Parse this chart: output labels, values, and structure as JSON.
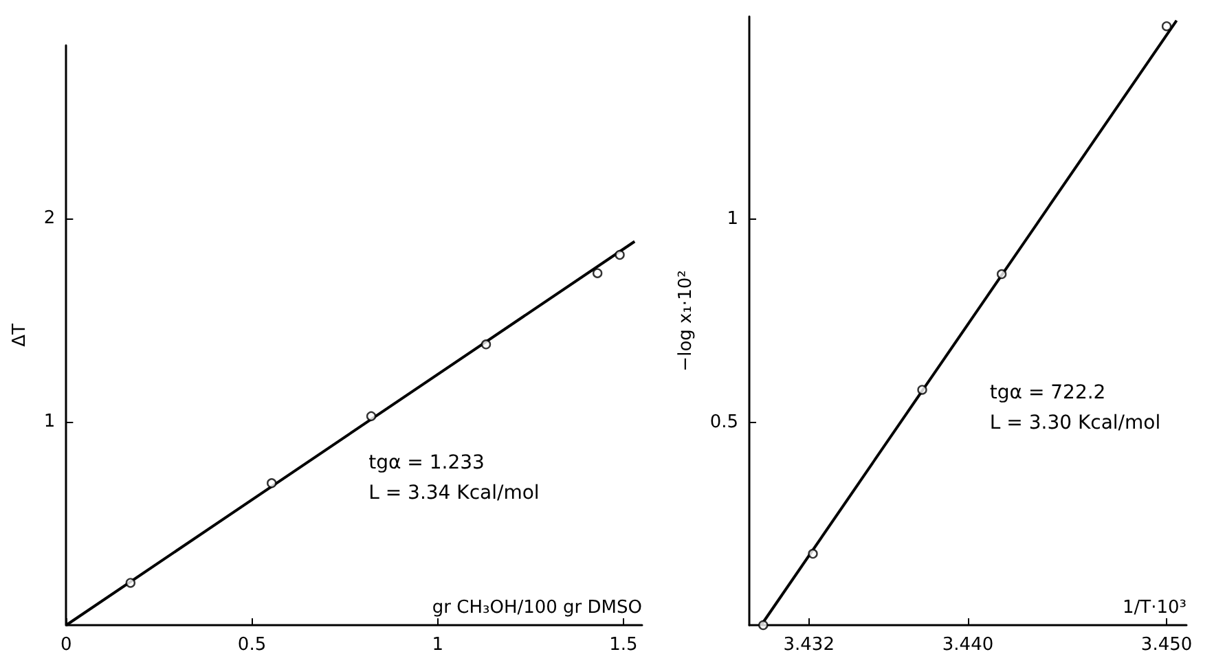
{
  "chart_data": [
    {
      "type": "scatter",
      "xlabel": "gr CH₃OH/100 gr DMSO",
      "ylabel": "ΔT",
      "xlim": [
        0,
        1.55
      ],
      "ylim": [
        0,
        2.85
      ],
      "xticks": [
        0,
        0.5,
        1,
        1.5
      ],
      "yticks": [
        1,
        2
      ],
      "grid": false,
      "annotations": [
        "tgα = 1.233",
        "L = 3.34 Kcal/mol"
      ],
      "series": [
        {
          "color": "#000000",
          "marker": "circle",
          "x": [
            0.173,
            0.553,
            0.821,
            1.13,
            1.43,
            1.49
          ],
          "values": [
            0.208,
            0.698,
            1.027,
            1.38,
            1.73,
            1.82
          ]
        },
        {
          "type": "line",
          "color": "#000000",
          "marker": "none",
          "x": [
            0,
            1.53
          ],
          "values": [
            0,
            1.886
          ]
        }
      ]
    },
    {
      "type": "scatter",
      "xlabel": "1/T·10³",
      "ylabel": "−log x₁·10²",
      "xlim": [
        3.429,
        3.451
      ],
      "ylim": [
        0,
        1.5
      ],
      "xticks": [
        {
          "value": 3.432,
          "label": "3.432"
        },
        {
          "value": 3.44,
          "label": "3.440"
        },
        {
          "value": 3.45,
          "label": "3.450"
        }
      ],
      "yticks": [
        0.5,
        1
      ],
      "grid": false,
      "annotations": [
        "tgα = 722.2",
        "L = 3.30 Kcal/mol"
      ],
      "series": [
        {
          "color": "#000000",
          "marker": "circle",
          "x": [
            3.4297,
            3.4322,
            3.4377,
            3.4417,
            3.45
          ],
          "values": [
            0,
            0.176,
            0.58,
            0.865,
            1.476
          ]
        },
        {
          "type": "line",
          "color": "#000000",
          "marker": "none",
          "x": [
            3.4296,
            3.4505
          ],
          "values": [
            0,
            1.49
          ]
        }
      ]
    }
  ]
}
